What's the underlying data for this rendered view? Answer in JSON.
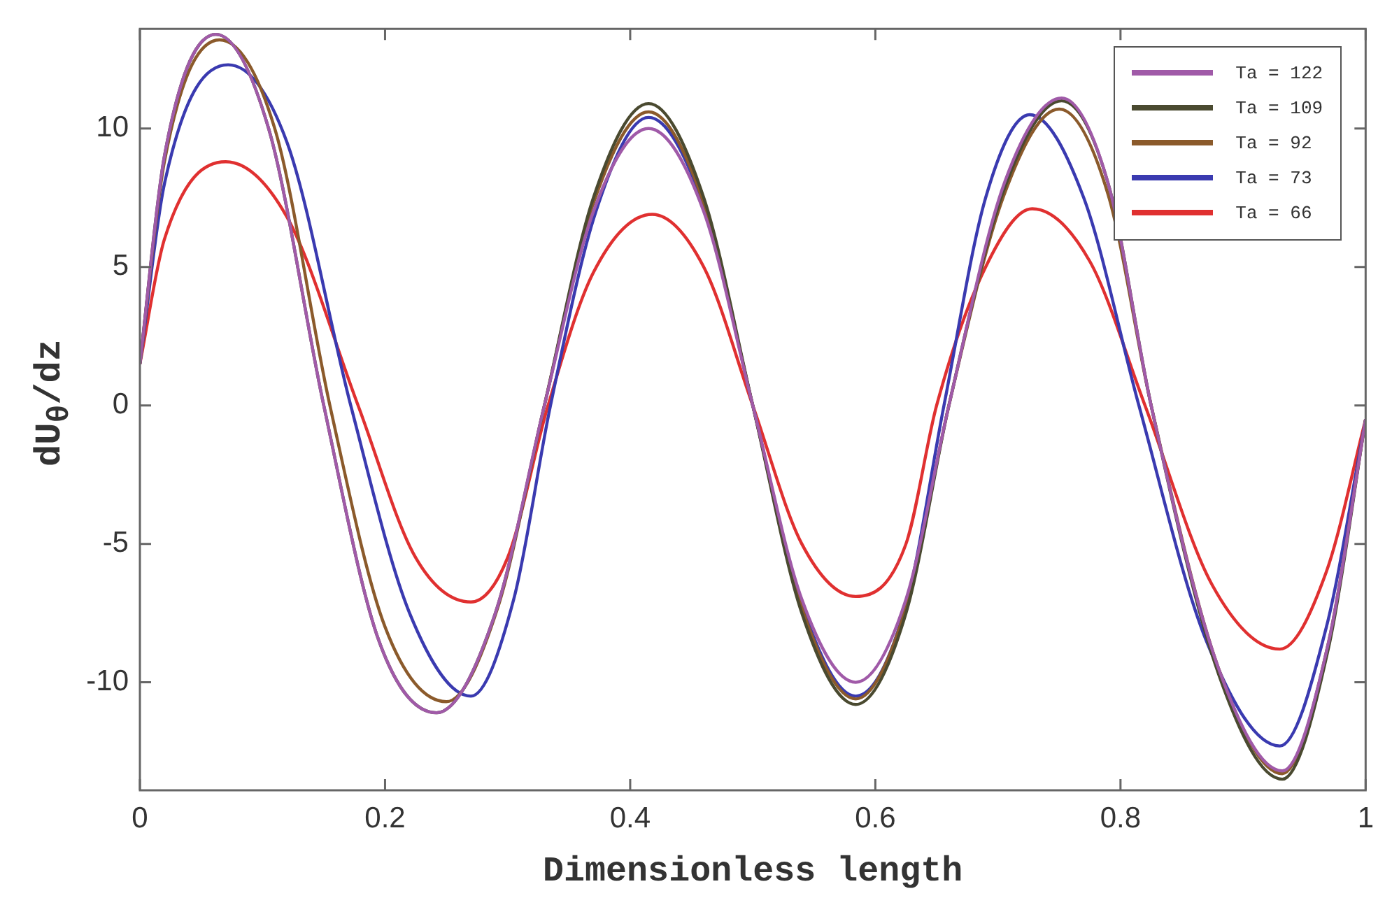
{
  "chart_data": {
    "type": "line",
    "xlabel": "Dimensionless length",
    "ylabel": "dU$_{θ}$/dz",
    "xlim": [
      0,
      1
    ],
    "xticks": [
      0,
      0.2,
      0.4,
      0.6,
      0.8,
      1
    ],
    "ylim": [
      -13.9,
      13.6
    ],
    "yticks": [
      -10,
      -5,
      0,
      5,
      10
    ],
    "grid": false,
    "legend": "top right",
    "marker": "none",
    "line_style": "solid",
    "series": [
      {
        "name": "Ta = 122",
        "color": "#a05aa8",
        "x": [
          0,
          0.02,
          0.062,
          0.105,
          0.15,
          0.195,
          0.242,
          0.29,
          0.33,
          0.37,
          0.415,
          0.46,
          0.5,
          0.54,
          0.584,
          0.625,
          0.66,
          0.705,
          0.752,
          0.79,
          0.825,
          0.88,
          0.932,
          0.97,
          1
        ],
        "values": [
          1.5,
          9,
          13.4,
          10,
          0,
          -8.5,
          -11.1,
          -7.5,
          0,
          7,
          10,
          7,
          0,
          -7,
          -10,
          -7,
          0,
          8,
          11.1,
          8,
          0,
          -9.5,
          -13.2,
          -8.5,
          -0.5
        ]
      },
      {
        "name": "Ta = 109",
        "color": "#4a4a30",
        "x": [
          0,
          0.02,
          0.062,
          0.105,
          0.15,
          0.195,
          0.242,
          0.29,
          0.33,
          0.37,
          0.415,
          0.46,
          0.5,
          0.54,
          0.584,
          0.625,
          0.66,
          0.705,
          0.752,
          0.79,
          0.825,
          0.88,
          0.932,
          0.97,
          1
        ],
        "values": [
          1.5,
          9,
          13.4,
          10,
          0,
          -8.5,
          -11.1,
          -7.5,
          0,
          7.5,
          10.9,
          7.5,
          0,
          -7.5,
          -10.8,
          -7.5,
          0,
          7.8,
          11,
          8,
          0,
          -9.7,
          -13.5,
          -8.7,
          -0.5
        ]
      },
      {
        "name": "Ta = 92",
        "color": "#8b5a2b",
        "x": [
          0,
          0.02,
          0.065,
          0.11,
          0.155,
          0.2,
          0.25,
          0.292,
          0.33,
          0.37,
          0.415,
          0.46,
          0.5,
          0.54,
          0.584,
          0.625,
          0.66,
          0.705,
          0.75,
          0.79,
          0.825,
          0.88,
          0.932,
          0.97,
          1
        ],
        "values": [
          1.5,
          8.8,
          13.2,
          10,
          0,
          -8,
          -10.7,
          -7.3,
          0,
          7.3,
          10.6,
          7.3,
          0,
          -7.3,
          -10.6,
          -7.3,
          0,
          7.6,
          10.7,
          7.6,
          0,
          -9.5,
          -13.3,
          -8.5,
          -0.5
        ]
      },
      {
        "name": "Ta = 73",
        "color": "#3a3ab0",
        "x": [
          0,
          0.02,
          0.072,
          0.12,
          0.172,
          0.22,
          0.27,
          0.305,
          0.335,
          0.372,
          0.415,
          0.46,
          0.5,
          0.54,
          0.584,
          0.625,
          0.656,
          0.69,
          0.726,
          0.77,
          0.815,
          0.87,
          0.93,
          0.968,
          1
        ],
        "values": [
          1.5,
          8,
          12.3,
          9.5,
          0,
          -7.5,
          -10.5,
          -7,
          0,
          7,
          10.4,
          7.2,
          0,
          -7.2,
          -10.5,
          -7.2,
          0,
          7.5,
          10.5,
          7.5,
          0,
          -8.5,
          -12.3,
          -8,
          -0.5
        ]
      },
      {
        "name": "Ta = 66",
        "color": "#e03030",
        "x": [
          0,
          0.02,
          0.07,
          0.12,
          0.178,
          0.225,
          0.27,
          0.3,
          0.333,
          0.37,
          0.418,
          0.46,
          0.5,
          0.54,
          0.584,
          0.625,
          0.65,
          0.69,
          0.728,
          0.775,
          0.82,
          0.875,
          0.93,
          0.968,
          1
        ],
        "values": [
          1.5,
          6,
          8.8,
          6.8,
          0,
          -5.5,
          -7.1,
          -5.5,
          0,
          4.8,
          6.9,
          5,
          0,
          -5,
          -6.9,
          -5,
          0,
          5,
          7.1,
          5.2,
          0,
          -6.5,
          -8.8,
          -6,
          -0.5
        ]
      }
    ]
  }
}
